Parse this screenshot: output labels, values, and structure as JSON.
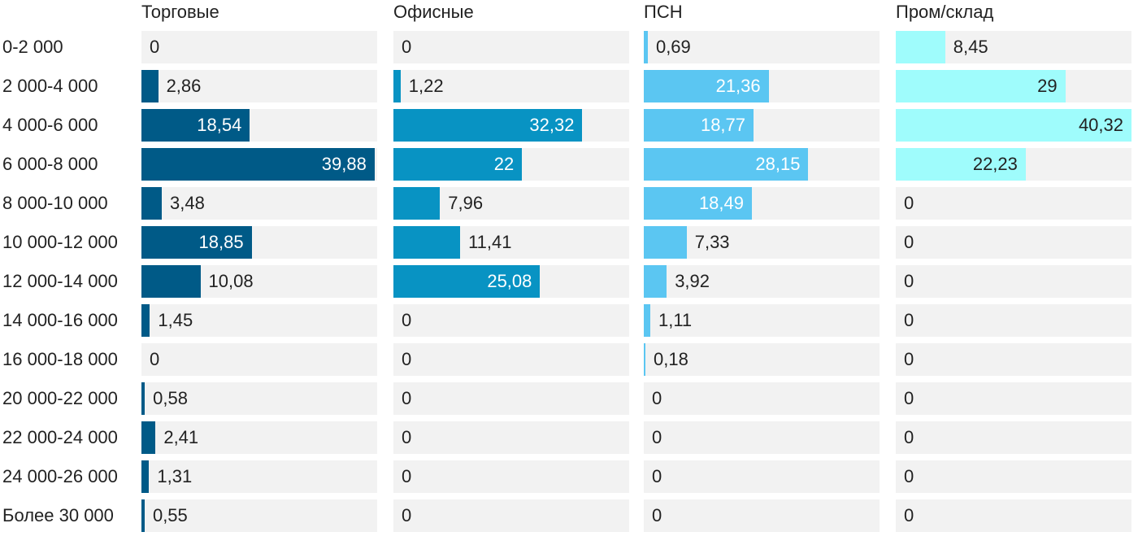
{
  "chart_data": {
    "type": "bar",
    "orientation": "horizontal",
    "layout": "small-multiples",
    "categories": [
      "0-2 000",
      "2 000-4 000",
      "4 000-6 000",
      "6 000-8 000",
      "8 000-10 000",
      "10 000-12 000",
      "12 000-14 000",
      "14 000-16 000",
      "16 000-18 000",
      "20 000-22 000",
      "22 000-24 000",
      "24 000-26 000",
      "Более 30 000"
    ],
    "series": [
      {
        "name": "Торговые",
        "color": "#005a87",
        "labels": [
          "0",
          "2,86",
          "18,54",
          "39,88",
          "3,48",
          "18,85",
          "10,08",
          "1,45",
          "0",
          "0,58",
          "2,41",
          "1,31",
          "0,55"
        ],
        "values": [
          0,
          2.86,
          18.54,
          39.88,
          3.48,
          18.85,
          10.08,
          1.45,
          0,
          0.58,
          2.41,
          1.31,
          0.55
        ]
      },
      {
        "name": "Офисные",
        "color": "#0893c3",
        "labels": [
          "0",
          "1,22",
          "32,32",
          "22",
          "7,96",
          "11,41",
          "25,08",
          "0",
          "0",
          "0",
          "0",
          "0",
          "0"
        ],
        "values": [
          0,
          1.22,
          32.32,
          22,
          7.96,
          11.41,
          25.08,
          0,
          0,
          0,
          0,
          0,
          0
        ]
      },
      {
        "name": "ПСН",
        "color": "#5bc6f2",
        "labels": [
          "0,69",
          "21,36",
          "18,77",
          "28,15",
          "18,49",
          "7,33",
          "3,92",
          "1,11",
          "0,18",
          "0",
          "0",
          "0",
          "0"
        ],
        "values": [
          0.69,
          21.36,
          18.77,
          28.15,
          18.49,
          7.33,
          3.92,
          1.11,
          0.18,
          0,
          0,
          0,
          0
        ]
      },
      {
        "name": "Пром/склад",
        "color": "#9ffcfc",
        "labels": [
          "8,45",
          "29",
          "40,32",
          "22,23",
          "0",
          "0",
          "0",
          "0",
          "0",
          "0",
          "0",
          "0",
          "0"
        ],
        "values": [
          8.45,
          29,
          40.32,
          22.23,
          0,
          0,
          0,
          0,
          0,
          0,
          0,
          0,
          0
        ]
      }
    ],
    "xlim": [
      0,
      40.32
    ],
    "title": "",
    "xlabel": "",
    "ylabel": "",
    "grid": false,
    "legend": "none"
  }
}
